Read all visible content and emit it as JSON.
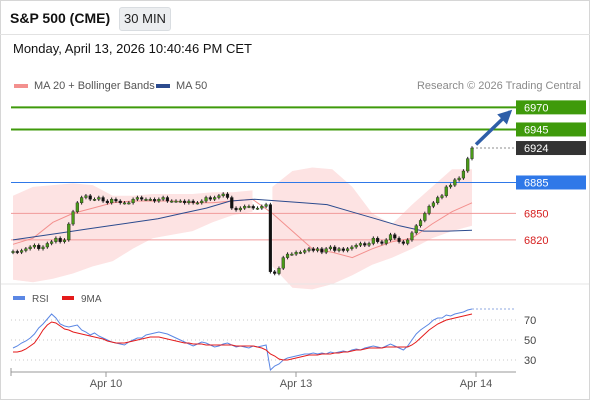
{
  "header": {
    "title": "S&P 500 (CME)",
    "timeframe": "30 MIN",
    "timestamp": "Monday, April 13, 2026 10:40:46 PM CET",
    "credit": "Research © 2026 Trading Central"
  },
  "colors": {
    "resistance": "#3f9a0b",
    "support": "#d62020",
    "pivot": "#2f78e8",
    "current": "#333333",
    "ma20": "#f3908e",
    "ma50": "#2c4b8e",
    "rsi": "#5b87e4",
    "rsi_ma": "#e41b1b",
    "arrow": "#2e5ea8"
  },
  "chart_data": [
    {
      "type": "candlestick",
      "title": "S&P 500 (CME)",
      "legend": [
        {
          "name": "MA 20 + Bollinger Bands",
          "color": "#f3908e"
        },
        {
          "name": "MA 50",
          "color": "#2c4b8e"
        }
      ],
      "x_ticks": [
        "Apr 10",
        "Apr 13",
        "Apr 14"
      ],
      "ylim": [
        6769,
        6984
      ],
      "levels": [
        {
          "value": 6970,
          "label": "6970",
          "kind": "resistance"
        },
        {
          "value": 6945,
          "label": "6945",
          "kind": "resistance"
        },
        {
          "value": 6924,
          "label": "6924",
          "kind": "current"
        },
        {
          "value": 6885,
          "label": "6885",
          "kind": "pivot"
        },
        {
          "value": 6850,
          "label": "6850",
          "kind": "support"
        },
        {
          "value": 6820,
          "label": "6820",
          "kind": "support"
        }
      ],
      "close_series": [
        6807,
        6806,
        6808,
        6810,
        6812,
        6814,
        6810,
        6812,
        6816,
        6818,
        6822,
        6818,
        6820,
        6838,
        6852,
        6862,
        6868,
        6870,
        6866,
        6866,
        6868,
        6864,
        6862,
        6866,
        6864,
        6862,
        6862,
        6862,
        6866,
        6868,
        6866,
        6866,
        6866,
        6864,
        6866,
        6868,
        6864,
        6864,
        6864,
        6864,
        6862,
        6864,
        6862,
        6862,
        6864,
        6868,
        6866,
        6868,
        6870,
        6872,
        6868,
        6856,
        6854,
        6856,
        6858,
        6858,
        6856,
        6856,
        6858,
        6860,
        6784,
        6782,
        6788,
        6800,
        6804,
        6804,
        6806,
        6806,
        6808,
        6810,
        6808,
        6810,
        6806,
        6810,
        6812,
        6808,
        6810,
        6808,
        6810,
        6812,
        6814,
        6816,
        6814,
        6816,
        6822,
        6818,
        6816,
        6820,
        6826,
        6822,
        6818,
        6816,
        6820,
        6828,
        6836,
        6842,
        6850,
        6858,
        6862,
        6868,
        6870,
        6880,
        6882,
        6888,
        6890,
        6898,
        6912,
        6924
      ],
      "ma20": [
        6815,
        6822,
        6840,
        6850,
        6856,
        6862,
        6864,
        6864,
        6864,
        6862,
        6862,
        6864,
        6866,
        6850,
        6830,
        6810,
        6806,
        6800,
        6810,
        6818,
        6822,
        6838,
        6852,
        6862
      ],
      "ma50": [
        6820,
        6824,
        6828,
        6832,
        6836,
        6840,
        6844,
        6850,
        6856,
        6864,
        6866,
        6864,
        6862,
        6860,
        6852,
        6844,
        6836,
        6830,
        6830,
        6831
      ],
      "bollinger_upper": [
        6870,
        6880,
        6882,
        6884,
        6882,
        6870,
        6870,
        6872,
        6872,
        6872,
        6874,
        6874,
        6876,
        6880,
        6898,
        6902,
        6900,
        6880,
        6850,
        6838,
        6860,
        6880,
        6900,
        6900
      ],
      "bollinger_lower": [
        6775,
        6772,
        6776,
        6782,
        6790,
        6796,
        6810,
        6822,
        6826,
        6830,
        6840,
        6848,
        6852,
        6790,
        6766,
        6764,
        6770,
        6780,
        6792,
        6800,
        6810,
        6822,
        6830,
        6836
      ],
      "forecast_arrow": {
        "from": 6928,
        "to": 6965
      }
    },
    {
      "type": "line",
      "title": "RSI",
      "series": [
        {
          "name": "RSI",
          "color": "#5b87e4"
        },
        {
          "name": "9MA",
          "color": "#e41b1b"
        }
      ],
      "y_ticks": [
        70,
        50,
        30
      ],
      "ylim": [
        15,
        85
      ],
      "rsi_values": [
        42,
        44,
        47,
        49,
        52,
        56,
        62,
        66,
        71,
        76,
        72,
        66,
        64,
        63,
        64,
        65,
        60,
        58,
        55,
        57,
        54,
        52,
        50,
        48,
        47,
        46,
        45,
        48,
        50,
        52,
        52,
        55,
        56,
        57,
        58,
        57,
        56,
        54,
        52,
        50,
        48,
        46,
        44,
        46,
        48,
        47,
        45,
        43,
        44,
        46,
        47,
        45,
        43,
        44,
        43,
        42,
        44,
        43,
        44,
        45,
        20,
        24,
        26,
        30,
        32,
        33,
        34,
        35,
        36,
        36,
        37,
        36,
        37,
        36,
        38,
        37,
        38,
        39,
        38,
        40,
        41,
        40,
        42,
        43,
        44,
        43,
        42,
        44,
        46,
        44,
        42,
        40,
        44,
        50,
        56,
        60,
        63,
        66,
        70,
        72,
        72,
        75,
        74,
        76,
        77,
        78,
        80,
        81
      ],
      "ma9_values": [
        38,
        38,
        39,
        41,
        44,
        47,
        53,
        60,
        65,
        68,
        67,
        64,
        61,
        60,
        58,
        57,
        56,
        55,
        54,
        53,
        52,
        51,
        49,
        48,
        47,
        47,
        47,
        48,
        49,
        50,
        51,
        52,
        53,
        53,
        53,
        52,
        51,
        50,
        49,
        48,
        47,
        47,
        46,
        46,
        46,
        45,
        45,
        45,
        45,
        45,
        45,
        45,
        44,
        44,
        44,
        44,
        44,
        43,
        42,
        40,
        36,
        34,
        31,
        30,
        30,
        31,
        32,
        33,
        34,
        35,
        35,
        35,
        36,
        36,
        36,
        37,
        37,
        38,
        38,
        39,
        40,
        40,
        41,
        42,
        42,
        42,
        42,
        43,
        43,
        43,
        43,
        43,
        43,
        45,
        48,
        52,
        56,
        60,
        63,
        66,
        68,
        70,
        71,
        72,
        73,
        74,
        75,
        76
      ]
    }
  ]
}
